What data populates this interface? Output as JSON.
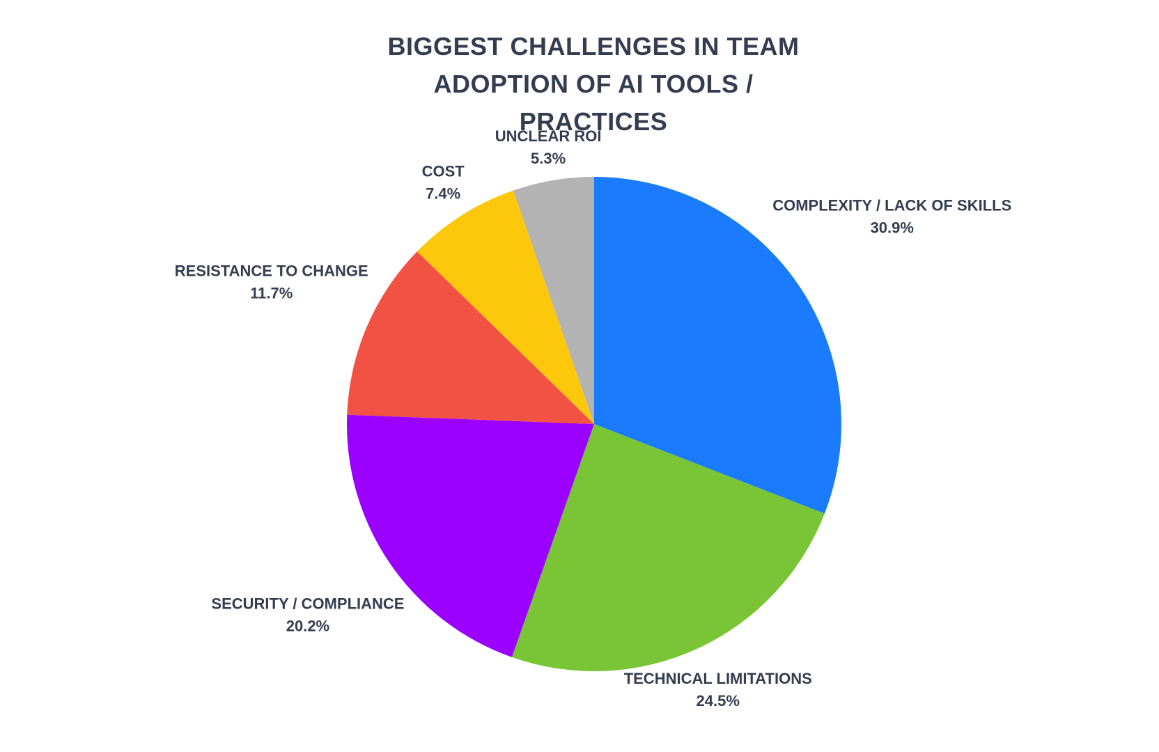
{
  "chart_data": {
    "type": "pie",
    "title": "BIGGEST CHALLENGES IN TEAM ADOPTION OF AI TOOLS / PRACTICES",
    "categories": [
      "COMPLEXITY / LACK OF SKILLS",
      "TECHNICAL LIMITATIONS",
      "SECURITY / COMPLIANCE",
      "RESISTANCE TO CHANGE",
      "COST",
      "UNCLEAR ROI"
    ],
    "values": [
      30.9,
      24.5,
      20.2,
      11.7,
      7.4,
      5.3
    ],
    "value_labels": [
      "30.9%",
      "24.5%",
      "20.2%",
      "11.7%",
      "7.4%",
      "5.3%"
    ],
    "colors": [
      "#1a7cfd",
      "#7ac536",
      "#9b00ff",
      "#f25244",
      "#fdc70c",
      "#b3b3b3"
    ]
  }
}
